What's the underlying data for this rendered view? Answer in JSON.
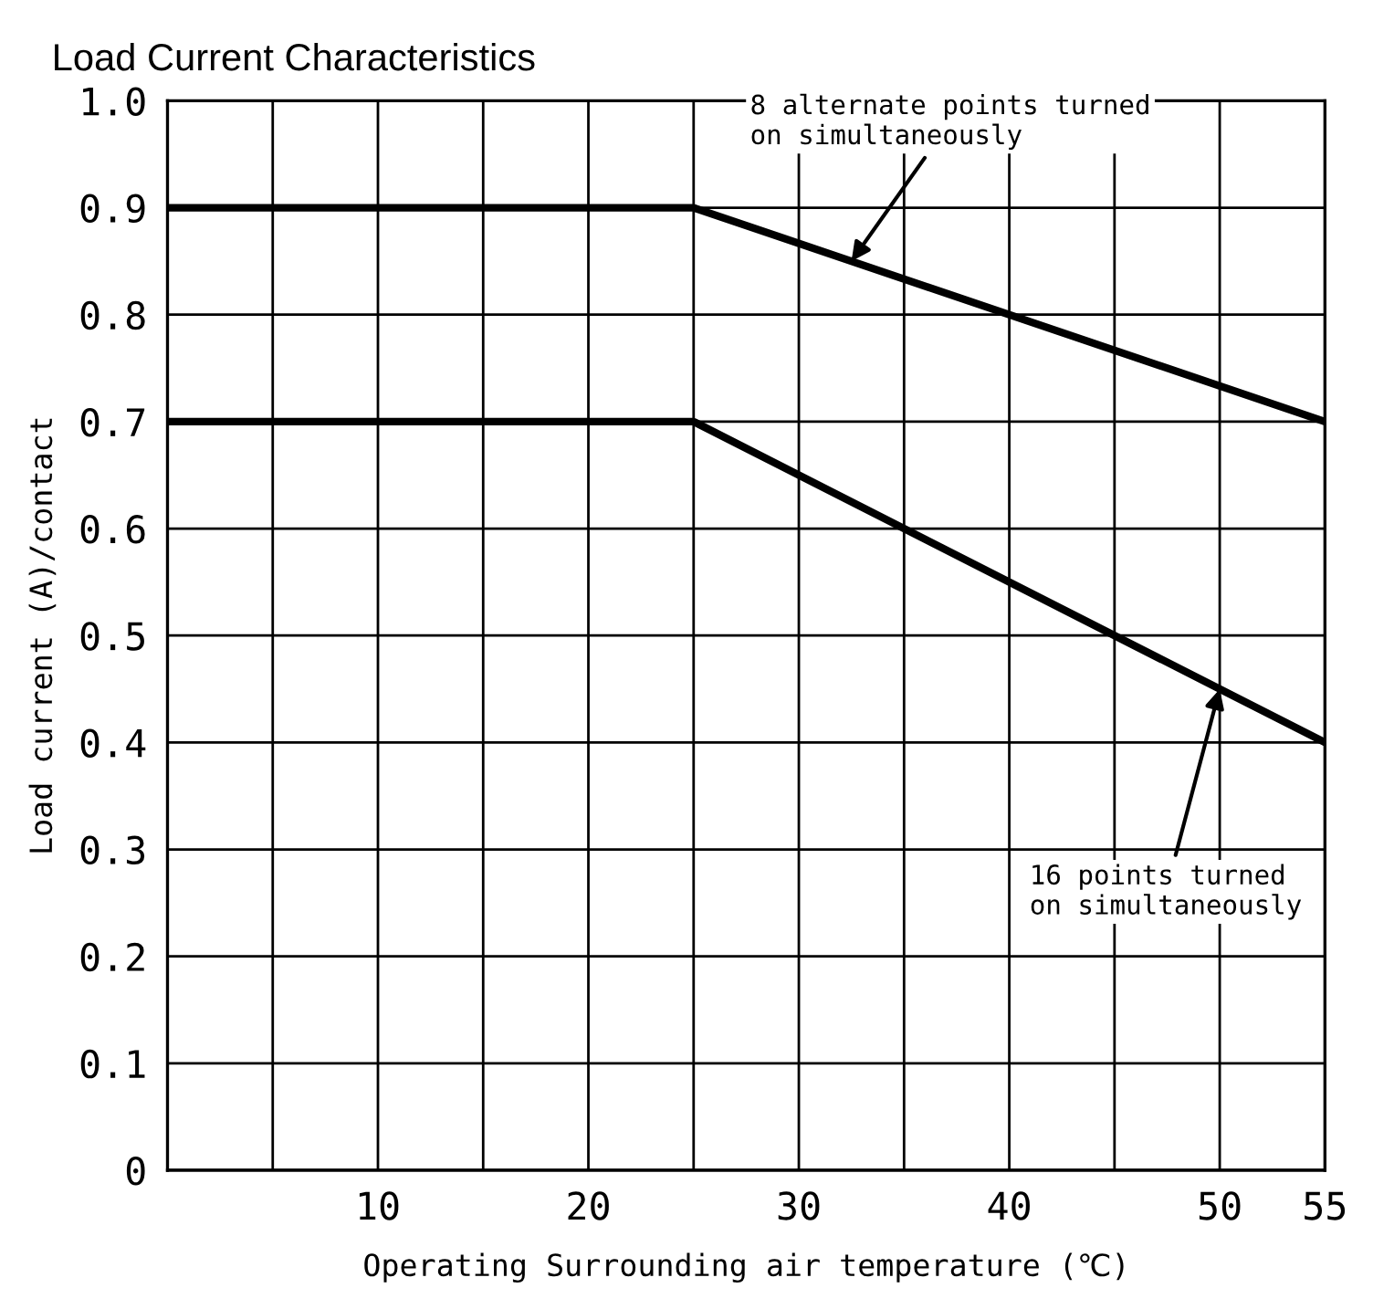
{
  "chart_data": {
    "type": "line",
    "title": "Load Current Characteristics",
    "xlabel": "Operating Surrounding air temperature (℃)",
    "ylabel": "Load current (A)/contact",
    "x": [
      0,
      25,
      55
    ],
    "series": [
      {
        "color": "#000000",
        "values": [
          0.9,
          0.9,
          0.7
        ]
      },
      {
        "color": "#000000",
        "values": [
          0.7,
          0.7,
          0.4
        ]
      }
    ],
    "xlim": [
      0,
      55
    ],
    "xticks": [
      {
        "value": 0,
        "label": null
      },
      {
        "value": 5,
        "label": null
      },
      10,
      {
        "value": 15,
        "label": null
      },
      20,
      {
        "value": 25,
        "label": null
      },
      30,
      {
        "value": 35,
        "label": null
      },
      40,
      {
        "value": 45,
        "label": null
      },
      50,
      55
    ],
    "ylim": [
      0,
      1.0
    ],
    "yticks": [
      0,
      0.1,
      0.2,
      0.3,
      0.4,
      0.5,
      0.6,
      0.7,
      0.8,
      0.9,
      {
        "value": 1.0,
        "label": "1.0"
      }
    ],
    "grid": true,
    "legend": false,
    "marker": "none",
    "line_style": "solid",
    "annotations": [
      {
        "text": "8 alternate points turned\non simultaneously",
        "x": 32.5,
        "y": 0.85
      },
      {
        "text": "16 points turned\non simultaneously",
        "x": 50,
        "y": 0.45
      }
    ]
  }
}
